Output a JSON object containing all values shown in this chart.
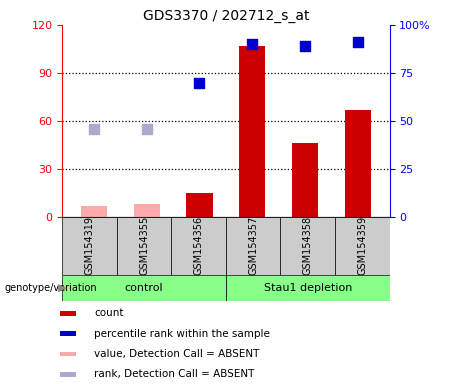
{
  "title": "GDS3370 / 202712_s_at",
  "samples": [
    "GSM154319",
    "GSM154355",
    "GSM154356",
    "GSM154357",
    "GSM154358",
    "GSM154359"
  ],
  "count_values": [
    null,
    null,
    15,
    107,
    46,
    67
  ],
  "count_absent": [
    7,
    8,
    null,
    null,
    null,
    null
  ],
  "percentile_values": [
    null,
    null,
    70,
    90,
    89,
    91
  ],
  "percentile_absent": [
    46,
    46,
    null,
    null,
    null,
    null
  ],
  "ylim_left": [
    0,
    120
  ],
  "ylim_right": [
    0,
    100
  ],
  "yticks_left": [
    0,
    30,
    60,
    90,
    120
  ],
  "yticks_right": [
    0,
    25,
    50,
    75,
    100
  ],
  "ytick_labels_left": [
    "0",
    "30",
    "60",
    "90",
    "120"
  ],
  "ytick_labels_right": [
    "0",
    "25",
    "50",
    "75",
    "100%"
  ],
  "bar_color_present": "#cc0000",
  "bar_color_absent": "#ffaaaa",
  "dot_color_present": "#0000cc",
  "dot_color_absent": "#aaaacc",
  "group_colors": [
    "#88ff88",
    "#88ff88"
  ],
  "group_labels": [
    "control",
    "Stau1 depletion"
  ],
  "group_sizes": [
    3,
    3
  ],
  "legend_items": [
    {
      "label": "count",
      "color": "#cc0000"
    },
    {
      "label": "percentile rank within the sample",
      "color": "#0000cc"
    },
    {
      "label": "value, Detection Call = ABSENT",
      "color": "#ffaaaa"
    },
    {
      "label": "rank, Detection Call = ABSENT",
      "color": "#aaaacc"
    }
  ],
  "genotype_label": "genotype/variation",
  "bar_width": 0.5,
  "dot_size": 55,
  "absent_dot_size": 45,
  "sample_box_color": "#cccccc",
  "plot_bg_color": "#ffffff"
}
